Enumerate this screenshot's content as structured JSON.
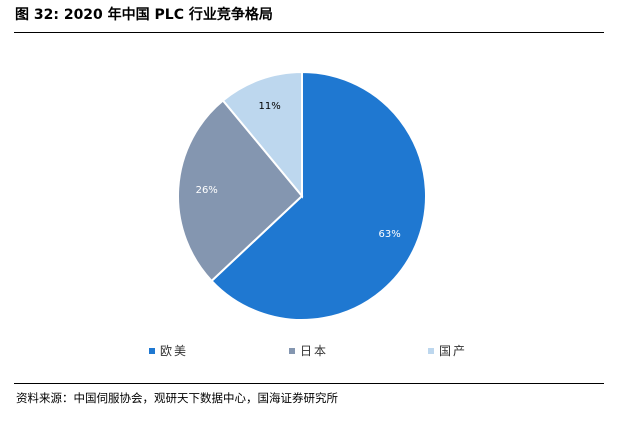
{
  "figure": {
    "title": "图 32:  2020 年中国 PLC 行业竞争格局",
    "source": "资料来源：中国伺服协会，观研天下数据中心，国海证券研究所"
  },
  "chart_data": {
    "type": "pie",
    "title": "",
    "categories": [
      "欧美",
      "日本",
      "国产"
    ],
    "values": [
      63,
      26,
      11
    ],
    "labels": [
      "63%",
      "26%",
      "11%"
    ],
    "colors": [
      "#1F78D1",
      "#8496B0",
      "#BDD7EE"
    ],
    "legend_position": "bottom"
  }
}
